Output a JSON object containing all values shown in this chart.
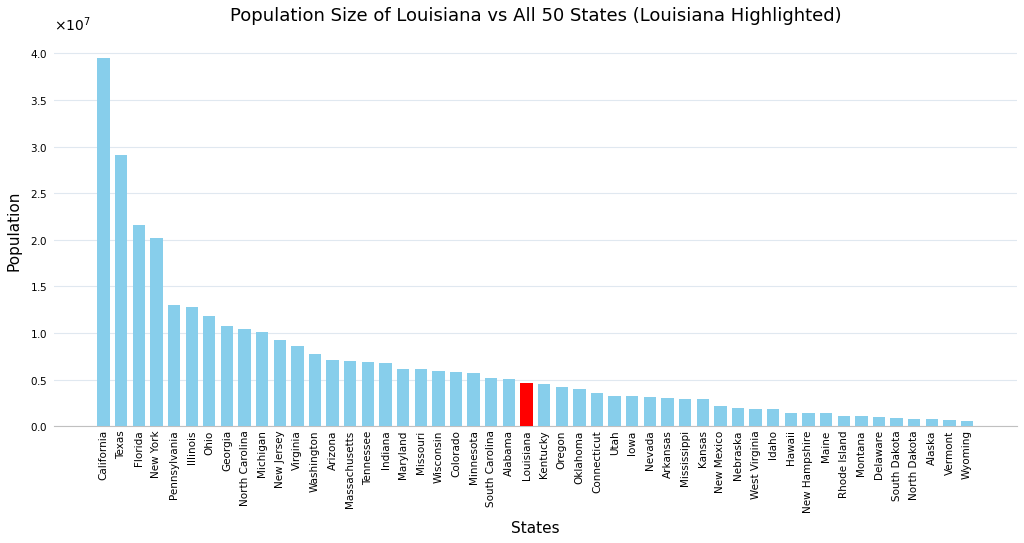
{
  "title": "Population Size of Louisiana vs All 50 States (Louisiana Highlighted)",
  "xlabel": "States",
  "ylabel": "Population",
  "highlight_state": "Louisiana",
  "highlight_color": "#ff0000",
  "default_color": "#87CEEB",
  "background_color": "#ffffff",
  "plot_bg_color": "#ffffff",
  "grid_color": "#e0e8f0",
  "states": [
    "California",
    "Texas",
    "Florida",
    "New York",
    "Pennsylvania",
    "Illinois",
    "Ohio",
    "Georgia",
    "North Carolina",
    "Michigan",
    "New Jersey",
    "Virginia",
    "Washington",
    "Arizona",
    "Massachusetts",
    "Tennessee",
    "Indiana",
    "Maryland",
    "Missouri",
    "Wisconsin",
    "Colorado",
    "Minnesota",
    "South Carolina",
    "Alabama",
    "Louisiana",
    "Kentucky",
    "Oregon",
    "Oklahoma",
    "Connecticut",
    "Utah",
    "Iowa",
    "Nevada",
    "Arkansas",
    "Mississippi",
    "Kansas",
    "New Mexico",
    "Nebraska",
    "West Virginia",
    "Idaho",
    "Hawaii",
    "New Hampshire",
    "Maine",
    "Rhode Island",
    "Montana",
    "Delaware",
    "South Dakota",
    "North Dakota",
    "Alaska",
    "Vermont",
    "Wyoming"
  ],
  "populations": [
    39538223,
    29145505,
    21538187,
    20201249,
    13002700,
    12812508,
    11799448,
    10711908,
    10439388,
    10077331,
    9288994,
    8631393,
    7705281,
    7151502,
    7029917,
    6910840,
    6785528,
    6177224,
    6154913,
    5893718,
    5773714,
    5706494,
    5118425,
    5024279,
    4657757,
    4505836,
    4237256,
    3959353,
    3605944,
    3271616,
    3190369,
    3104614,
    3011524,
    2961279,
    2937880,
    2117522,
    1961504,
    1793716,
    1839106,
    1455271,
    1377529,
    1362359,
    1097379,
    1084225,
    989948,
    886667,
    779094,
    733391,
    643077,
    576851
  ],
  "ylim": [
    0,
    42000000
  ],
  "ytick_step": 5000000,
  "title_fontsize": 13,
  "label_fontsize": 11,
  "tick_fontsize": 7.5
}
